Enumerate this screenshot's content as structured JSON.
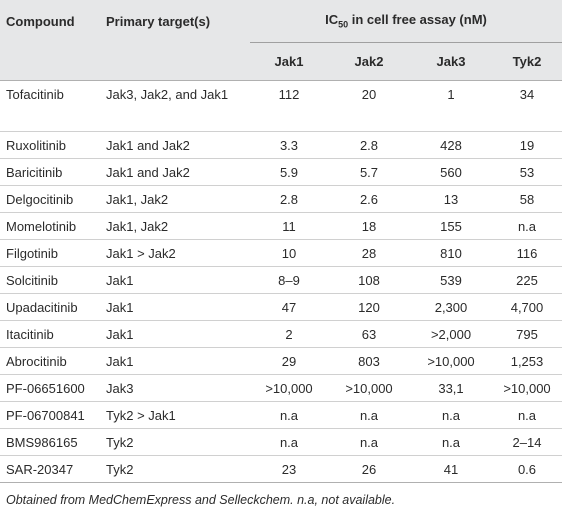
{
  "table": {
    "header": {
      "compound": "Compound",
      "target": "Primary target(s)",
      "ic50": {
        "main": "IC",
        "sub": "50",
        "rest": " in cell free assay (nM)"
      },
      "columns": [
        "Jak1",
        "Jak2",
        "Jak3",
        "Tyk2"
      ]
    },
    "rows": [
      [
        "Tofacitinib",
        "Jak3, Jak2, and Jak1",
        "112",
        "20",
        "1",
        "34"
      ],
      [
        "Ruxolitinib",
        "Jak1 and Jak2",
        "3.3",
        "2.8",
        "428",
        "19"
      ],
      [
        "Baricitinib",
        "Jak1 and Jak2",
        "5.9",
        "5.7",
        "560",
        "53"
      ],
      [
        "Delgocitinib",
        "Jak1, Jak2",
        "2.8",
        "2.6",
        "13",
        "58"
      ],
      [
        "Momelotinib",
        "Jak1, Jak2",
        "11",
        "18",
        "155",
        "n.a"
      ],
      [
        "Filgotinib",
        "Jak1 > Jak2",
        "10",
        "28",
        "810",
        "116"
      ],
      [
        "Solcitinib",
        "Jak1",
        "8–9",
        "108",
        "539",
        "225"
      ],
      [
        "Upadacitinib",
        "Jak1",
        "47",
        "120",
        "2,300",
        "4,700"
      ],
      [
        "Itacitinib",
        "Jak1",
        "2",
        "63",
        ">2,000",
        "795"
      ],
      [
        "Abrocitinib",
        "Jak1",
        "29",
        "803",
        ">10,000",
        "1,253"
      ],
      [
        "PF-06651600",
        "Jak3",
        ">10,000",
        ">10,000",
        "33,1",
        ">10,000"
      ],
      [
        "PF-06700841",
        "Tyk2 > Jak1",
        "n.a",
        "n.a",
        "n.a",
        "n.a"
      ],
      [
        "BMS986165",
        "Tyk2",
        "n.a",
        "n.a",
        "n.a",
        "2–14"
      ],
      [
        "SAR-20347",
        "Tyk2",
        "23",
        "26",
        "41",
        "0.6"
      ]
    ],
    "footnote": "Obtained from MedChemExpress and Selleckchem. n.a, not available."
  }
}
